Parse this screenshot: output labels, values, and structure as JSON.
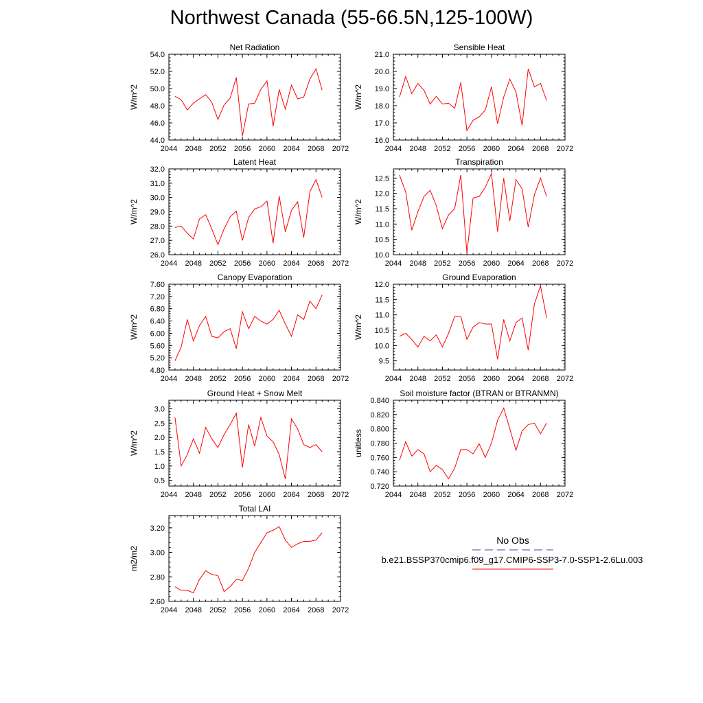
{
  "figure": {
    "title": "Northwest Canada (55-66.5N,125-100W)",
    "legend": {
      "obs_label": "No Obs",
      "obs_color": "#4444aa",
      "case_label": "b.e21.BSSP370cmip6.f09_g17.CMIP6-SSP3-7.0-SSP1-2.6Lu.003",
      "case_color": "#ff0000"
    }
  },
  "chart_data": [
    {
      "type": "line",
      "title": "Net Radiation",
      "ylabel": "W/m^2",
      "xlim": [
        2044,
        2072
      ],
      "ylim": [
        44.0,
        54.0
      ],
      "xticks": [
        2044,
        2048,
        2052,
        2056,
        2060,
        2064,
        2068,
        2072
      ],
      "yticks": [
        44.0,
        46.0,
        48.0,
        50.0,
        52.0,
        54.0
      ],
      "ytick_labels": [
        "44.0",
        "46.0",
        "48.0",
        "50.0",
        "52.0",
        "54.0"
      ],
      "x": [
        2045,
        2046,
        2047,
        2048,
        2049,
        2050,
        2051,
        2052,
        2053,
        2054,
        2055,
        2056,
        2057,
        2058,
        2059,
        2060,
        2061,
        2062,
        2063,
        2064,
        2065,
        2066,
        2067,
        2068,
        2069
      ],
      "series": [
        {
          "color": "#ff0000",
          "values": [
            49.1,
            48.7,
            47.5,
            48.3,
            48.8,
            49.3,
            48.4,
            46.4,
            48.1,
            48.9,
            51.3,
            44.5,
            48.2,
            48.3,
            49.9,
            50.9,
            45.6,
            49.9,
            47.6,
            50.4,
            48.8,
            49.0,
            51.1,
            52.3,
            49.8
          ]
        }
      ]
    },
    {
      "type": "line",
      "title": "Sensible Heat",
      "ylabel": "W/m^2",
      "xlim": [
        2044,
        2072
      ],
      "ylim": [
        16.0,
        21.0
      ],
      "xticks": [
        2044,
        2048,
        2052,
        2056,
        2060,
        2064,
        2068,
        2072
      ],
      "yticks": [
        16.0,
        17.0,
        18.0,
        19.0,
        20.0,
        21.0
      ],
      "ytick_labels": [
        "16.0",
        "17.0",
        "18.0",
        "19.0",
        "20.0",
        "21.0"
      ],
      "x": [
        2045,
        2046,
        2047,
        2048,
        2049,
        2050,
        2051,
        2052,
        2053,
        2054,
        2055,
        2056,
        2057,
        2058,
        2059,
        2060,
        2061,
        2062,
        2063,
        2064,
        2065,
        2066,
        2067,
        2068,
        2069
      ],
      "series": [
        {
          "color": "#ff0000",
          "values": [
            18.5,
            19.7,
            18.7,
            19.3,
            18.9,
            18.1,
            18.55,
            18.1,
            18.15,
            17.85,
            19.35,
            16.55,
            17.15,
            17.35,
            17.75,
            19.1,
            16.95,
            18.5,
            19.55,
            18.8,
            16.85,
            20.15,
            19.1,
            19.3,
            18.3
          ]
        }
      ]
    },
    {
      "type": "line",
      "title": "Latent Heat",
      "ylabel": "W/m^2",
      "xlim": [
        2044,
        2072
      ],
      "ylim": [
        26.0,
        32.0
      ],
      "xticks": [
        2044,
        2048,
        2052,
        2056,
        2060,
        2064,
        2068,
        2072
      ],
      "yticks": [
        26.0,
        27.0,
        28.0,
        29.0,
        30.0,
        31.0,
        32.0
      ],
      "ytick_labels": [
        "26.0",
        "27.0",
        "28.0",
        "29.0",
        "30.0",
        "31.0",
        "32.0"
      ],
      "x": [
        2045,
        2046,
        2047,
        2048,
        2049,
        2050,
        2051,
        2052,
        2053,
        2054,
        2055,
        2056,
        2057,
        2058,
        2059,
        2060,
        2061,
        2062,
        2063,
        2064,
        2065,
        2066,
        2067,
        2068,
        2069
      ],
      "series": [
        {
          "color": "#ff0000",
          "values": [
            27.9,
            28.0,
            27.5,
            27.1,
            28.5,
            28.8,
            27.8,
            26.7,
            27.8,
            28.65,
            29.05,
            27.0,
            28.6,
            29.2,
            29.35,
            29.75,
            26.8,
            30.1,
            27.6,
            29.1,
            29.7,
            27.2,
            30.4,
            31.25,
            30.0
          ]
        }
      ]
    },
    {
      "type": "line",
      "title": "Transpiration",
      "ylabel": "W/m^2",
      "xlim": [
        2044,
        2072
      ],
      "ylim": [
        10.0,
        12.8
      ],
      "xticks": [
        2044,
        2048,
        2052,
        2056,
        2060,
        2064,
        2068,
        2072
      ],
      "yticks": [
        10.0,
        10.5,
        11.0,
        11.5,
        12.0,
        12.5
      ],
      "ytick_labels": [
        "10.0",
        "10.5",
        "11.0",
        "11.5",
        "12.0",
        "12.5"
      ],
      "x": [
        2045,
        2046,
        2047,
        2048,
        2049,
        2050,
        2051,
        2052,
        2053,
        2054,
        2055,
        2056,
        2057,
        2058,
        2059,
        2060,
        2061,
        2062,
        2063,
        2064,
        2065,
        2066,
        2067,
        2068,
        2069
      ],
      "series": [
        {
          "color": "#ff0000",
          "values": [
            12.6,
            12.05,
            10.8,
            11.4,
            11.9,
            12.1,
            11.6,
            10.85,
            11.3,
            11.5,
            12.6,
            10.05,
            11.85,
            11.9,
            12.2,
            12.65,
            10.75,
            12.5,
            11.1,
            12.45,
            12.15,
            10.9,
            11.95,
            12.5,
            11.9
          ]
        }
      ]
    },
    {
      "type": "line",
      "title": "Canopy Evaporation",
      "ylabel": "W/m^2",
      "xlim": [
        2044,
        2072
      ],
      "ylim": [
        4.8,
        7.6
      ],
      "xticks": [
        2044,
        2048,
        2052,
        2056,
        2060,
        2064,
        2068,
        2072
      ],
      "yticks": [
        4.8,
        5.2,
        5.6,
        6.0,
        6.4,
        6.8,
        7.2,
        7.6
      ],
      "ytick_labels": [
        "4.80",
        "5.20",
        "5.60",
        "6.00",
        "6.40",
        "6.80",
        "7.20",
        "7.60"
      ],
      "x": [
        2045,
        2046,
        2047,
        2048,
        2049,
        2050,
        2051,
        2052,
        2053,
        2054,
        2055,
        2056,
        2057,
        2058,
        2059,
        2060,
        2061,
        2062,
        2063,
        2064,
        2065,
        2066,
        2067,
        2068,
        2069
      ],
      "series": [
        {
          "color": "#ff0000",
          "values": [
            5.1,
            5.55,
            6.45,
            5.75,
            6.25,
            6.55,
            5.9,
            5.85,
            6.05,
            6.15,
            5.5,
            6.7,
            6.15,
            6.55,
            6.4,
            6.3,
            6.45,
            6.75,
            6.3,
            5.9,
            6.6,
            6.45,
            7.05,
            6.8,
            7.25
          ]
        }
      ]
    },
    {
      "type": "line",
      "title": "Ground Evaporation",
      "ylabel": "W/m^2",
      "xlim": [
        2044,
        2072
      ],
      "ylim": [
        9.2,
        12.0
      ],
      "xticks": [
        2044,
        2048,
        2052,
        2056,
        2060,
        2064,
        2068,
        2072
      ],
      "yticks": [
        9.5,
        10.0,
        10.5,
        11.0,
        11.5,
        12.0
      ],
      "ytick_labels": [
        "9.5",
        "10.0",
        "10.5",
        "11.0",
        "11.5",
        "12.0"
      ],
      "x": [
        2045,
        2046,
        2047,
        2048,
        2049,
        2050,
        2051,
        2052,
        2053,
        2054,
        2055,
        2056,
        2057,
        2058,
        2059,
        2060,
        2061,
        2062,
        2063,
        2064,
        2065,
        2066,
        2067,
        2068,
        2069
      ],
      "series": [
        {
          "color": "#ff0000",
          "values": [
            10.3,
            10.4,
            10.2,
            9.95,
            10.3,
            10.15,
            10.35,
            9.95,
            10.4,
            10.95,
            10.95,
            10.2,
            10.6,
            10.75,
            10.7,
            10.7,
            9.55,
            10.85,
            10.15,
            10.75,
            10.9,
            9.85,
            11.35,
            11.95,
            10.9
          ]
        }
      ]
    },
    {
      "type": "line",
      "title": "Ground Heat + Snow Melt",
      "ylabel": "W/m^2",
      "xlim": [
        2044,
        2072
      ],
      "ylim": [
        0.3,
        3.3
      ],
      "xticks": [
        2044,
        2048,
        2052,
        2056,
        2060,
        2064,
        2068,
        2072
      ],
      "yticks": [
        0.5,
        1.0,
        1.5,
        2.0,
        2.5,
        3.0
      ],
      "ytick_labels": [
        "0.5",
        "1.0",
        "1.5",
        "2.0",
        "2.5",
        "3.0"
      ],
      "x": [
        2045,
        2046,
        2047,
        2048,
        2049,
        2050,
        2051,
        2052,
        2053,
        2054,
        2055,
        2056,
        2057,
        2058,
        2059,
        2060,
        2061,
        2062,
        2063,
        2064,
        2065,
        2066,
        2067,
        2068,
        2069
      ],
      "series": [
        {
          "color": "#ff0000",
          "values": [
            2.7,
            1.0,
            1.4,
            1.95,
            1.45,
            2.35,
            1.95,
            1.65,
            2.1,
            2.45,
            2.85,
            0.95,
            2.45,
            1.7,
            2.7,
            2.05,
            1.85,
            1.4,
            0.55,
            2.65,
            2.3,
            1.75,
            1.65,
            1.75,
            1.5
          ]
        }
      ]
    },
    {
      "type": "line",
      "title": "Soil moisture factor (BTRAN or BTRANMN)",
      "ylabel": "unitless",
      "xlim": [
        2044,
        2072
      ],
      "ylim": [
        0.72,
        0.84
      ],
      "xticks": [
        2044,
        2048,
        2052,
        2056,
        2060,
        2064,
        2068,
        2072
      ],
      "yticks": [
        0.72,
        0.74,
        0.76,
        0.78,
        0.8,
        0.82,
        0.84
      ],
      "ytick_labels": [
        "0.720",
        "0.740",
        "0.760",
        "0.780",
        "0.800",
        "0.820",
        "0.840"
      ],
      "x": [
        2045,
        2046,
        2047,
        2048,
        2049,
        2050,
        2051,
        2052,
        2053,
        2054,
        2055,
        2056,
        2057,
        2058,
        2059,
        2060,
        2061,
        2062,
        2063,
        2064,
        2065,
        2066,
        2067,
        2068,
        2069
      ],
      "series": [
        {
          "color": "#ff0000",
          "values": [
            0.756,
            0.782,
            0.762,
            0.771,
            0.765,
            0.74,
            0.749,
            0.743,
            0.73,
            0.745,
            0.771,
            0.771,
            0.765,
            0.779,
            0.76,
            0.78,
            0.812,
            0.829,
            0.8,
            0.77,
            0.797,
            0.806,
            0.808,
            0.793,
            0.808
          ]
        }
      ]
    },
    {
      "type": "line",
      "title": "Total LAI",
      "ylabel": "m2/m2",
      "xlim": [
        2044,
        2072
      ],
      "ylim": [
        2.6,
        3.3
      ],
      "xticks": [
        2044,
        2048,
        2052,
        2056,
        2060,
        2064,
        2068,
        2072
      ],
      "yticks": [
        2.6,
        2.8,
        3.0,
        3.2
      ],
      "ytick_labels": [
        "2.60",
        "2.80",
        "3.00",
        "3.20"
      ],
      "x": [
        2045,
        2046,
        2047,
        2048,
        2049,
        2050,
        2051,
        2052,
        2053,
        2054,
        2055,
        2056,
        2057,
        2058,
        2059,
        2060,
        2061,
        2062,
        2063,
        2064,
        2065,
        2066,
        2067,
        2068,
        2069
      ],
      "series": [
        {
          "color": "#ff0000",
          "values": [
            2.72,
            2.69,
            2.69,
            2.67,
            2.78,
            2.85,
            2.82,
            2.81,
            2.68,
            2.72,
            2.78,
            2.77,
            2.87,
            3.0,
            3.08,
            3.16,
            3.18,
            3.21,
            3.1,
            3.04,
            3.07,
            3.09,
            3.09,
            3.1,
            3.16
          ]
        }
      ]
    }
  ]
}
